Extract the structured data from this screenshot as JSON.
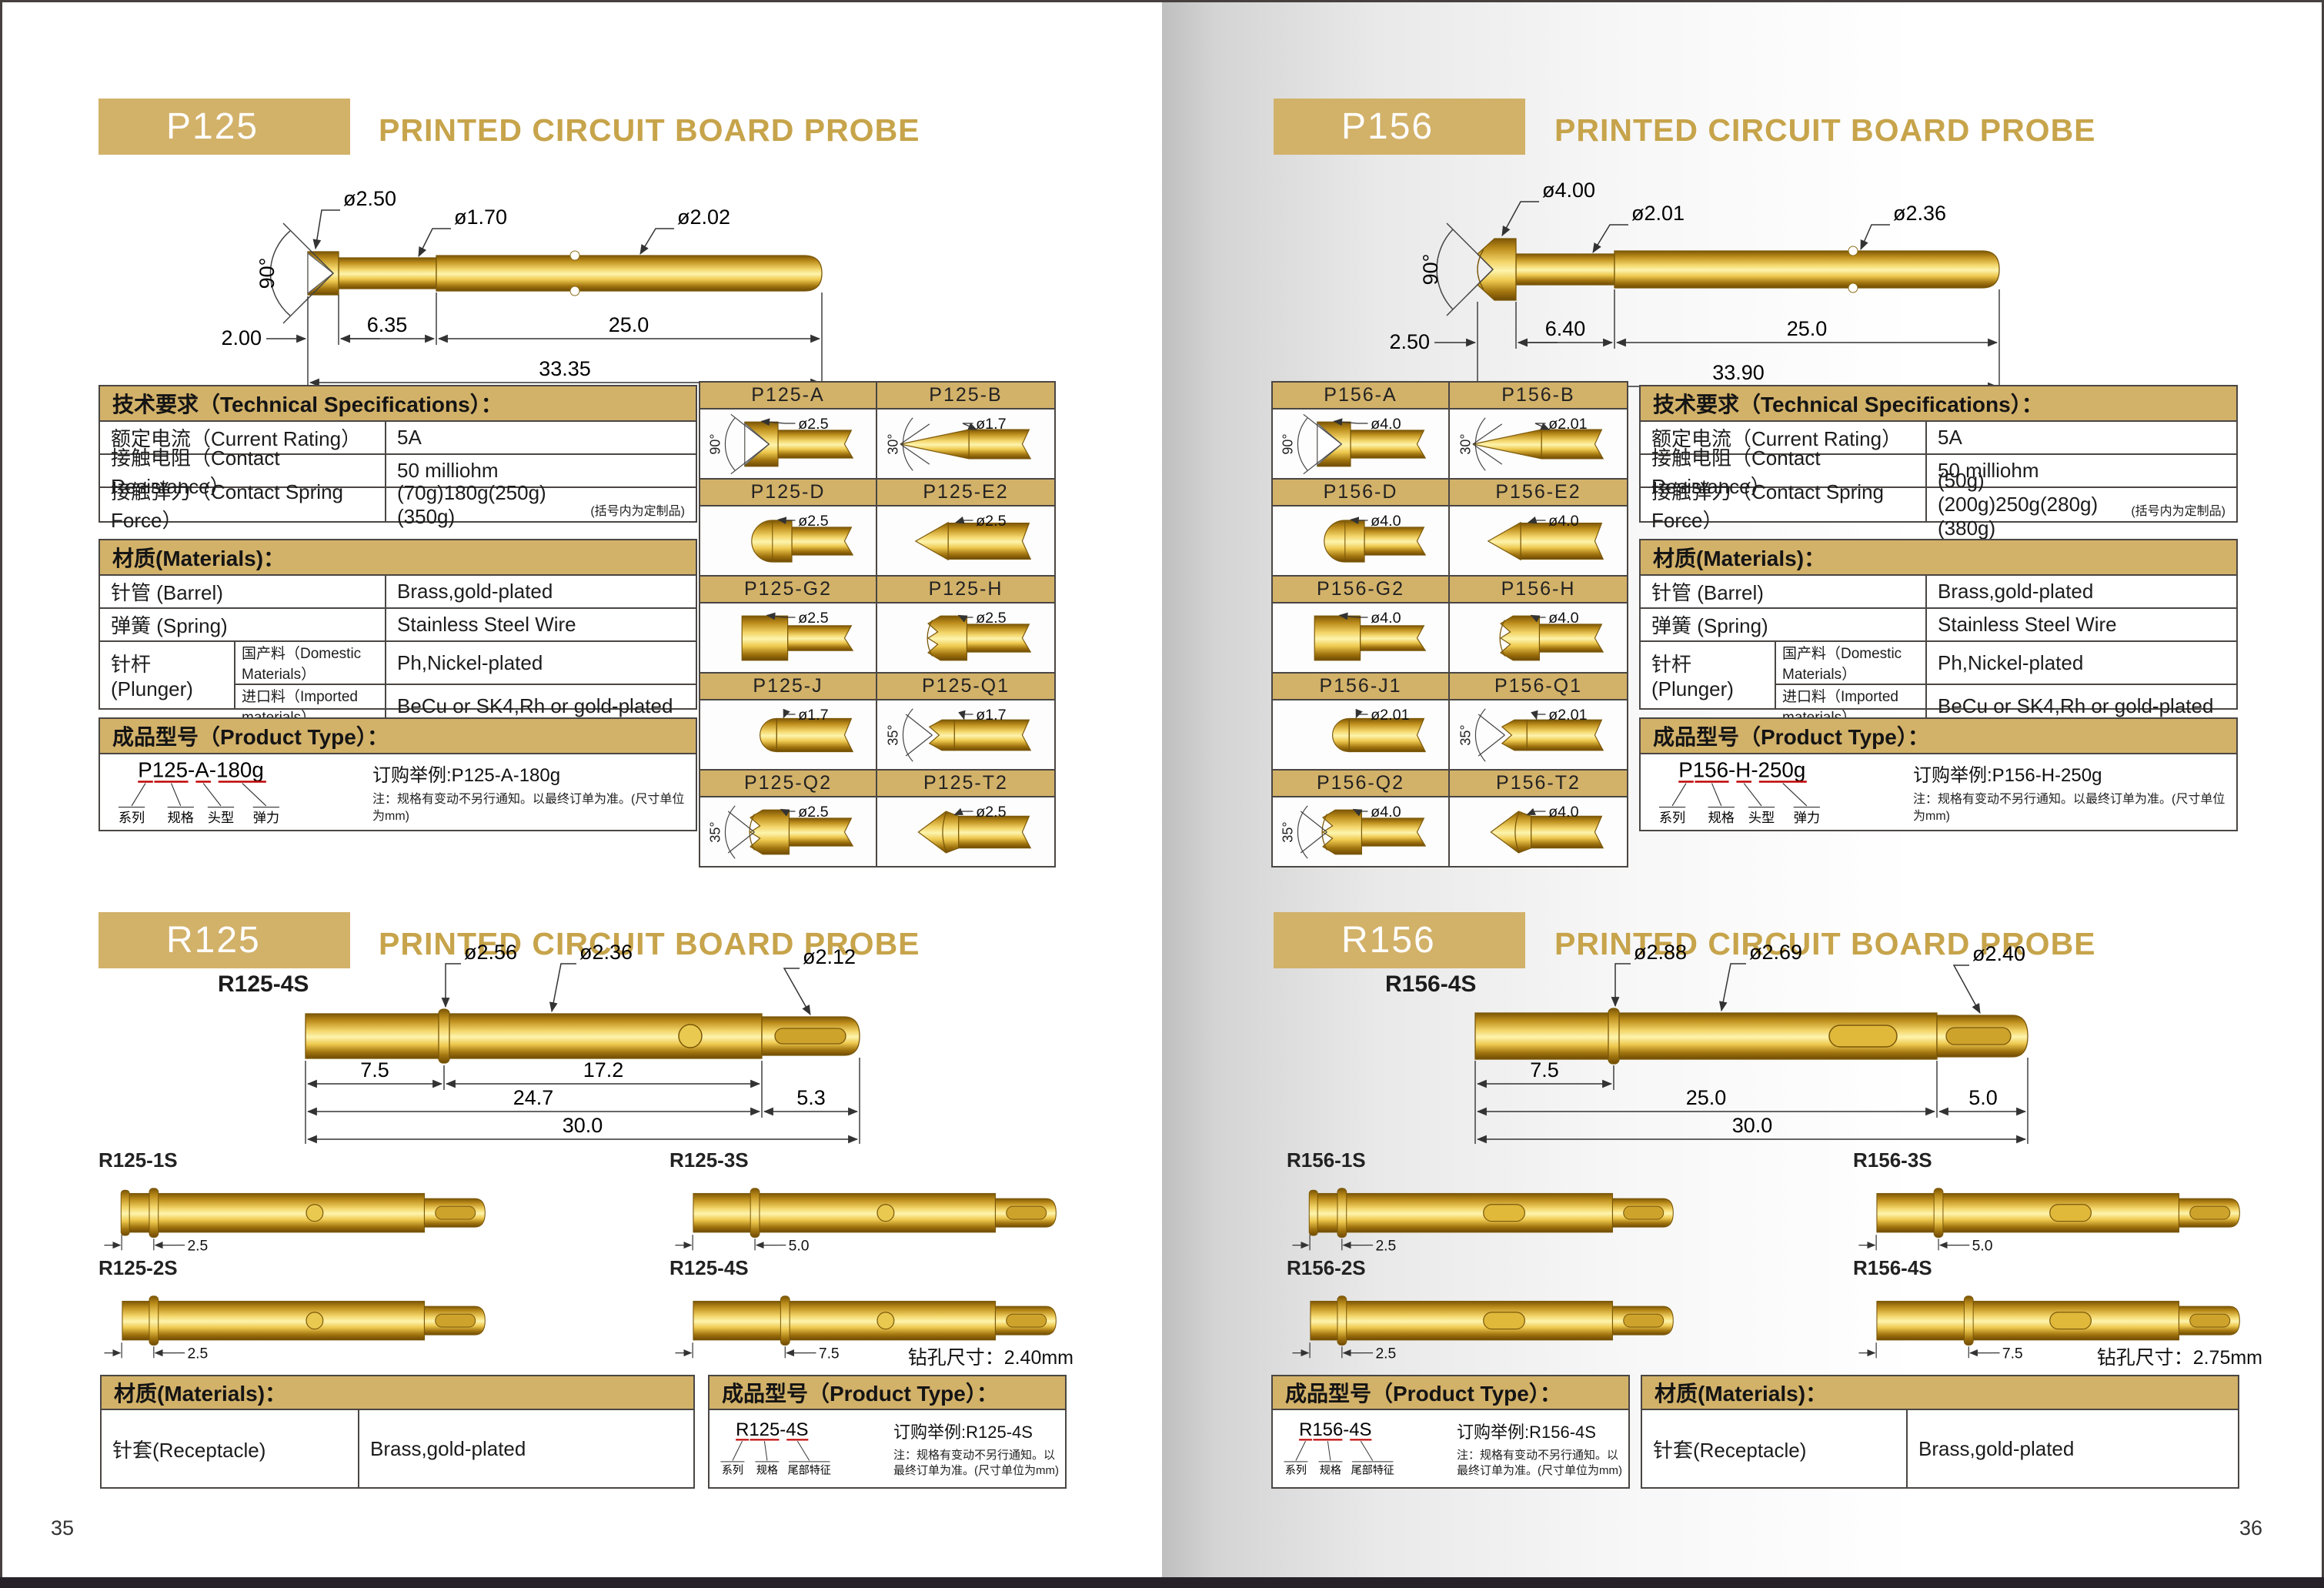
{
  "accent": "#D2B169",
  "title_color": "#C7A44B",
  "left": {
    "page_no": "35",
    "p": {
      "code": "P125",
      "title": "PRINTED CIRCUIT BOARD  PROBE",
      "draw": {
        "angle": "90°",
        "d1": "ø2.50",
        "d2": "ø1.70",
        "d3": "ø2.02",
        "l1": "2.00",
        "l2": "6.35",
        "l3": "25.0",
        "total": "33.35"
      },
      "spec": {
        "header": "技术要求（Technical Specifications）：",
        "rows": [
          {
            "label": "额定电流（Current Rating）",
            "value": "5A"
          },
          {
            "label": "接触电阻（Contact Resistance）",
            "value": "50 milliohm"
          },
          {
            "label": "接触弹力（Contact Spring Force）",
            "value": "(70g)180g(250g)(350g)",
            "note": "(括号内为定制品)"
          }
        ]
      },
      "materials": {
        "header": "材质(Materials)：",
        "barrel_label": "针管 (Barrel)",
        "barrel_value": "Brass,gold-plated",
        "spring_label": "弹簧 (Spring)",
        "spring_value": "Stainless Steel Wire",
        "plunger_label": "针杆 (Plunger)",
        "domestic_label": "国产料（Domestic Materials）",
        "domestic_value": "Ph,Nickel-plated",
        "imported_label": "进口料（Imported materials）",
        "imported_value": "BeCu or SK4,Rh or gold-plated"
      },
      "product": {
        "header": "成品型号（Product Type）：",
        "model": "P125-A-180g",
        "legend": [
          "系列",
          "规格",
          "头型",
          "弹力"
        ],
        "example": "订购举例:P125-A-180g",
        "note": "注：规格有变动不另行通知。以最终订单为准。(尺寸单位为mm)"
      },
      "variants": [
        {
          "name": "P125-A",
          "dia": "ø2.5",
          "angle": "90°",
          "tip": "notch90"
        },
        {
          "name": "P125-B",
          "dia": "ø1.7",
          "angle": "30°",
          "tip": "cone30"
        },
        {
          "name": "P125-D",
          "dia": "ø2.5",
          "tip": "dome"
        },
        {
          "name": "P125-E2",
          "dia": "ø2.5",
          "tip": "point"
        },
        {
          "name": "P125-G2",
          "dia": "ø2.5",
          "tip": "flat"
        },
        {
          "name": "P125-H",
          "dia": "ø2.5",
          "tip": "crown"
        },
        {
          "name": "P125-J",
          "dia": "ø1.7",
          "tip": "bullet"
        },
        {
          "name": "P125-Q1",
          "dia": "ø1.7",
          "angle": "35°",
          "tip": "crown_small"
        },
        {
          "name": "P125-Q2",
          "dia": "ø2.5",
          "angle": "35°",
          "tip": "crown"
        },
        {
          "name": "P125-T2",
          "dia": "ø2.5",
          "tip": "chisel"
        }
      ]
    },
    "r": {
      "code": "R125",
      "title": "PRINTED CIRCUIT BOARD  PROBE",
      "model": "R125-4S",
      "draw": {
        "d1": "ø2.56",
        "d2": "ø2.36",
        "d3": "ø2.12",
        "a": "7.5",
        "b": "17.2",
        "c": "24.7",
        "d": "5.3",
        "total": "30.0"
      },
      "hole": "circle",
      "variants": [
        {
          "name": "R125-1S",
          "dim": "2.5",
          "collar_mm": 2.5,
          "lip": true
        },
        {
          "name": "R125-3S",
          "dim": "5.0",
          "collar_mm": 5.0,
          "lip": false
        },
        {
          "name": "R125-2S",
          "dim": "2.5",
          "collar_mm": 2.5,
          "lip": false
        },
        {
          "name": "R125-4S",
          "dim": "7.5",
          "collar_mm": 7.5,
          "lip": false
        }
      ],
      "drill_note": "钻孔尺寸：2.40mm",
      "materials": {
        "header": "材质(Materials)：",
        "label": "针套(Receptacle)",
        "value": "Brass,gold-plated"
      },
      "product": {
        "header": "成品型号（Product Type）：",
        "model": "R125-4S",
        "legend": [
          "系列",
          "规格",
          "尾部特征"
        ],
        "example": "订购举例:R125-4S",
        "note": "注：规格有变动不另行通知。以最终订单为准。(尺寸单位为mm)"
      }
    }
  },
  "right": {
    "page_no": "36",
    "p": {
      "code": "P156",
      "title": "PRINTED CIRCUIT BOARD  PROBE",
      "draw": {
        "angle": "90°",
        "d1": "ø4.00",
        "d2": "ø2.01",
        "d3": "ø2.36",
        "l1": "2.50",
        "l2": "6.40",
        "l3": "25.0",
        "total": "33.90"
      },
      "spec": {
        "header": "技术要求（Technical Specifications）：",
        "rows": [
          {
            "label": "额定电流（Current Rating）",
            "value": "5A"
          },
          {
            "label": "接触电阻（Contact Resistance）",
            "value": "50 milliohm"
          },
          {
            "label": "接触弹力（Contact Spring Force）",
            "value": "(50g)(200g)250g(280g)(380g)",
            "note": "(括号内为定制品)"
          }
        ]
      },
      "materials": {
        "header": "材质(Materials)：",
        "barrel_label": "针管 (Barrel)",
        "barrel_value": "Brass,gold-plated",
        "spring_label": "弹簧 (Spring)",
        "spring_value": "Stainless Steel Wire",
        "plunger_label": "针杆 (Plunger)",
        "domestic_label": "国产料（Domestic Materials）",
        "domestic_value": "Ph,Nickel-plated",
        "imported_label": "进口料（Imported materials）",
        "imported_value": "BeCu or SK4,Rh or gold-plated"
      },
      "product": {
        "header": "成品型号（Product Type）：",
        "model": "P156-H-250g",
        "legend": [
          "系列",
          "规格",
          "头型",
          "弹力"
        ],
        "example": "订购举例:P156-H-250g",
        "note": "注：规格有变动不另行通知。以最终订单为准。(尺寸单位为mm)"
      },
      "variants": [
        {
          "name": "P156-A",
          "dia": "ø4.0",
          "angle": "90°",
          "tip": "notch90"
        },
        {
          "name": "P156-B",
          "dia": "ø2.01",
          "angle": "30°",
          "tip": "cone30"
        },
        {
          "name": "P156-D",
          "dia": "ø4.0",
          "tip": "dome"
        },
        {
          "name": "P156-E2",
          "dia": "ø4.0",
          "tip": "point"
        },
        {
          "name": "P156-G2",
          "dia": "ø4.0",
          "tip": "flat"
        },
        {
          "name": "P156-H",
          "dia": "ø4.0",
          "tip": "crown"
        },
        {
          "name": "P156-J1",
          "dia": "ø2.01",
          "tip": "bullet"
        },
        {
          "name": "P156-Q1",
          "dia": "ø2.01",
          "angle": "35°",
          "tip": "crown_small"
        },
        {
          "name": "P156-Q2",
          "dia": "ø4.0",
          "angle": "35°",
          "tip": "crown"
        },
        {
          "name": "P156-T2",
          "dia": "ø4.0",
          "tip": "chisel"
        }
      ]
    },
    "r": {
      "code": "R156",
      "title": "PRINTED CIRCUIT BOARD  PROBE",
      "model": "R156-4S",
      "draw": {
        "d1": "ø2.88",
        "d2": "ø2.69",
        "d3": "ø2.40",
        "a": "7.5",
        "b": "25.0",
        "c": "5.0",
        "total": "30.0"
      },
      "hole": "slot",
      "variants": [
        {
          "name": "R156-1S",
          "dim": "2.5",
          "collar_mm": 2.5,
          "lip": true
        },
        {
          "name": "R156-3S",
          "dim": "5.0",
          "collar_mm": 5.0,
          "lip": false
        },
        {
          "name": "R156-2S",
          "dim": "2.5",
          "collar_mm": 2.5,
          "lip": false
        },
        {
          "name": "R156-4S",
          "dim": "7.5",
          "collar_mm": 7.5,
          "lip": false
        }
      ],
      "drill_note": "钻孔尺寸：2.75mm",
      "materials": {
        "header": "材质(Materials)：",
        "label": "针套(Receptacle)",
        "value": "Brass,gold-plated"
      },
      "product": {
        "header": "成品型号（Product Type）：",
        "model": "R156-4S",
        "legend": [
          "系列",
          "规格",
          "尾部特征"
        ],
        "example": "订购举例:R156-4S",
        "note": "注：规格有变动不另行通知。以最终订单为准。(尺寸单位为mm)"
      }
    }
  }
}
